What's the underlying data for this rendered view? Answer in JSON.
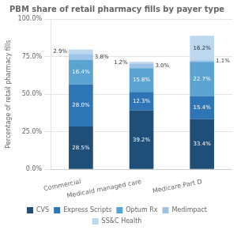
{
  "chart_data": {
    "type": "bar",
    "title": "PBM share of retail pharmacy fills by payer type",
    "ylabel": "Percentage of retail pharmacy fills",
    "categories": [
      "Commercial",
      "Medicaid managed care",
      "Medicare Part D"
    ],
    "series": [
      {
        "name": "CVS",
        "color": "#1f4e79",
        "values": [
          28.5,
          39.2,
          33.4
        ],
        "value_labels": [
          "28.5%",
          "39.2%",
          "33.4%"
        ]
      },
      {
        "name": "Express Scripts",
        "color": "#2e75b6",
        "values": [
          28.0,
          12.3,
          15.4
        ],
        "value_labels": [
          "28.0%",
          "12.3%",
          "15.4%"
        ]
      },
      {
        "name": "Optum Rx",
        "color": "#5ba3d0",
        "values": [
          16.4,
          15.8,
          22.7
        ],
        "value_labels": [
          "16.4%",
          "15.8%",
          "22.7%"
        ]
      },
      {
        "name": "Medimpact",
        "color": "#9dc3e6",
        "values": [
          3.8,
          3.0,
          1.1
        ],
        "value_labels": [
          "3.8%",
          "3.0%",
          "1.1%"
        ]
      },
      {
        "name": "SS&C Health",
        "color": "#bdd7ee",
        "values": [
          2.9,
          1.2,
          16.2
        ],
        "value_labels": [
          "2.9%",
          "1.2%",
          "16.2%"
        ]
      }
    ],
    "ylim": [
      0,
      100
    ],
    "yticks": [
      {
        "value": 0,
        "label": "0.0%"
      },
      {
        "value": 25,
        "label": "25.0%"
      },
      {
        "value": 50,
        "label": "50.0%"
      },
      {
        "value": 75,
        "label": "75.0%"
      },
      {
        "value": 100,
        "label": "100.0%"
      }
    ],
    "grid": true,
    "legend": "bottom",
    "stacked": true,
    "data_labels": true
  }
}
